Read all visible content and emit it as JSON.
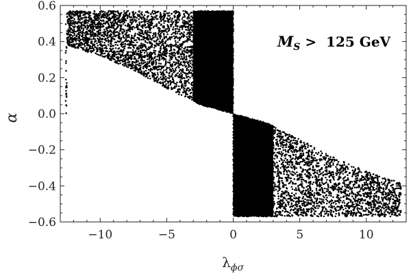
{
  "chart_data": {
    "type": "scatter",
    "title": "",
    "xlabel": "λ",
    "xlabel_sub": "ϕσ",
    "ylabel": "α",
    "xlim": [
      -13,
      13
    ],
    "ylim": [
      -0.6,
      0.6
    ],
    "x_ticks": [
      -10,
      -5,
      0,
      5,
      10
    ],
    "x_tick_labels": [
      "−10",
      "−5",
      "0",
      "5",
      "10"
    ],
    "y_ticks": [
      -0.6,
      -0.4,
      -0.2,
      0.0,
      0.2,
      0.4,
      0.6
    ],
    "y_tick_labels": [
      "−0.6",
      "−0.4",
      "−0.2",
      "0.0",
      "0.2",
      "0.4",
      "0.6"
    ],
    "grid": false,
    "marker_color": "#000000",
    "annotation": {
      "symbol": "M",
      "subscript": "S",
      "text": " >  125 GeV"
    },
    "regions": [
      {
        "description": "upper-left scatter band: for negative coupling, alpha ranges from a lower boundary line up to 0.57",
        "x_range": [
          -12.6,
          0
        ],
        "alpha_max": 0.57,
        "lower_boundary": [
          [
            -12.5,
            0.38
          ],
          [
            -10.0,
            0.32
          ],
          [
            -7.5,
            0.24
          ],
          [
            -5.0,
            0.14
          ],
          [
            -2.5,
            0.05
          ],
          [
            0.0,
            0.0
          ]
        ],
        "dense_x_range": [
          -3,
          0
        ]
      },
      {
        "description": "lower-right scatter band: for positive coupling, alpha ranges from -0.57 up to an upper boundary line",
        "x_range": [
          0,
          12.6
        ],
        "alpha_min": -0.57,
        "upper_boundary": [
          [
            0.0,
            0.0
          ],
          [
            2.5,
            -0.05
          ],
          [
            5.0,
            -0.14
          ],
          [
            7.5,
            -0.24
          ],
          [
            10.0,
            -0.32
          ],
          [
            12.5,
            -0.38
          ]
        ],
        "dense_x_range": [
          0,
          3
        ]
      }
    ]
  }
}
